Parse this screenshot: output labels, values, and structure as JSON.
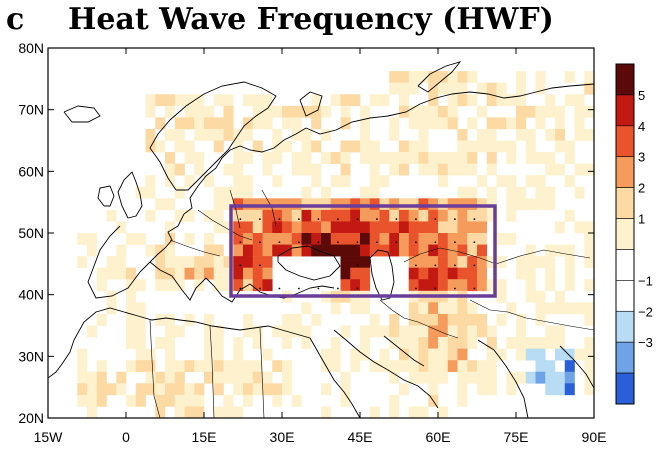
{
  "panel_letter": "c",
  "title": "Heat Wave Frequency (HWF)",
  "colors": {
    "ocean": "#ffffff",
    "land": "#ffffff",
    "box": "#6a3d9a",
    "coast": "#000000",
    "colorbar": [
      "#2a5fd7",
      "#6fa3e8",
      "#b9dcf5",
      "#ffffff",
      "#ffffff",
      "#fdf2cd",
      "#fdd9a3",
      "#f59b5c",
      "#e9542c",
      "#c21a12",
      "#5c0a07"
    ]
  },
  "chart_data": {
    "type": "heatmap",
    "title": "Heat Wave Frequency (HWF)",
    "x_ticks": [
      "15W",
      "0",
      "15E",
      "30E",
      "45E",
      "60E",
      "75E",
      "90E"
    ],
    "y_ticks": [
      "80N",
      "70N",
      "60N",
      "50N",
      "40N",
      "30N",
      "20N"
    ],
    "xlim": [
      -15,
      90
    ],
    "ylim": [
      20,
      80
    ],
    "colorbar_labels": [
      "5",
      "4",
      "3",
      "2",
      "1",
      "−1",
      "−2",
      "−3"
    ],
    "highlight_box": {
      "lon": [
        20,
        70
      ],
      "lat": [
        40,
        55
      ]
    }
  }
}
